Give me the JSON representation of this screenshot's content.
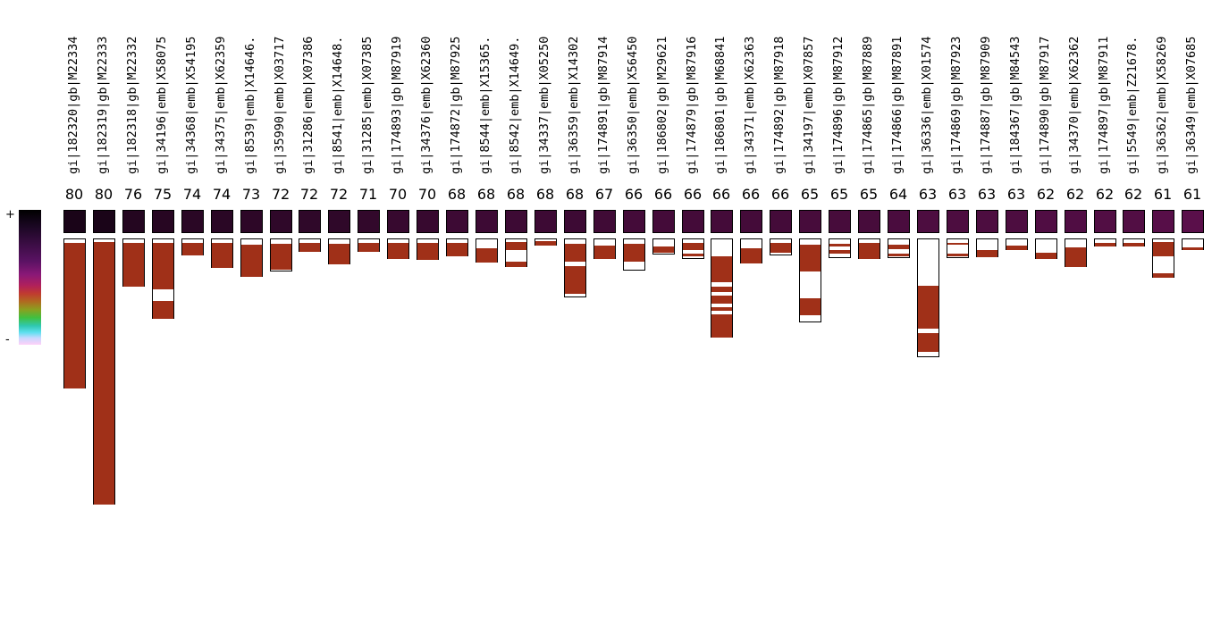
{
  "legend": {
    "plus": "+",
    "minus": "-"
  },
  "colors": {
    "bar_fill": "#a03018",
    "bar_empty": "#ffffff",
    "heat_high": "#1a0418",
    "heat_low": "#5a0f4a"
  },
  "columns": [
    {
      "label": "gi|182320|gb|M22334",
      "score": "80",
      "heat": 0.0,
      "total": 168,
      "cap": 5,
      "fill": [
        [
          5,
          168
        ]
      ]
    },
    {
      "label": "gi|182319|gb|M22333",
      "score": "80",
      "heat": 0.0,
      "total": 298,
      "cap": 4,
      "fill": [
        [
          4,
          298
        ]
      ]
    },
    {
      "label": "gi|182318|gb|M22332",
      "score": "76",
      "heat": 0.15,
      "total": 54,
      "cap": 5,
      "fill": [
        [
          5,
          54
        ]
      ]
    },
    {
      "label": "gi|34196|emb|X58075",
      "score": "75",
      "heat": 0.2,
      "total": 90,
      "cap": 5,
      "fill": [
        [
          5,
          57
        ],
        [
          70,
          90
        ]
      ]
    },
    {
      "label": "gi|34368|emb|X54195",
      "score": "74",
      "heat": 0.25,
      "total": 19,
      "cap": 5,
      "fill": [
        [
          5,
          19
        ]
      ]
    },
    {
      "label": "gi|34375|emb|X62359",
      "score": "74",
      "heat": 0.25,
      "total": 33,
      "cap": 5,
      "fill": [
        [
          5,
          33
        ]
      ]
    },
    {
      "label": "gi|8539|emb|X14646.",
      "score": "73",
      "heat": 0.3,
      "total": 43,
      "cap": 7,
      "fill": [
        [
          7,
          43
        ]
      ]
    },
    {
      "label": "gi|35990|emb|X03717",
      "score": "72",
      "heat": 0.33,
      "total": 37,
      "cap": 6,
      "fill": [
        [
          6,
          35
        ]
      ]
    },
    {
      "label": "gi|31286|emb|X07386",
      "score": "72",
      "heat": 0.33,
      "total": 15,
      "cap": 5,
      "fill": [
        [
          5,
          15
        ]
      ]
    },
    {
      "label": "gi|8541|emb|X14648.",
      "score": "72",
      "heat": 0.33,
      "total": 29,
      "cap": 6,
      "fill": [
        [
          6,
          29
        ]
      ]
    },
    {
      "label": "gi|31285|emb|X07385",
      "score": "71",
      "heat": 0.38,
      "total": 15,
      "cap": 5,
      "fill": [
        [
          5,
          15
        ]
      ]
    },
    {
      "label": "gi|174893|gb|M87919",
      "score": "70",
      "heat": 0.45,
      "total": 23,
      "cap": 5,
      "fill": [
        [
          5,
          23
        ]
      ]
    },
    {
      "label": "gi|34376|emb|X62360",
      "score": "70",
      "heat": 0.45,
      "total": 24,
      "cap": 5,
      "fill": [
        [
          5,
          24
        ]
      ]
    },
    {
      "label": "gi|174872|gb|M87925",
      "score": "68",
      "heat": 0.55,
      "total": 20,
      "cap": 5,
      "fill": [
        [
          5,
          20
        ]
      ]
    },
    {
      "label": "gi|8544|emb|X15365.",
      "score": "68",
      "heat": 0.55,
      "total": 27,
      "cap": 11,
      "fill": [
        [
          11,
          27
        ]
      ]
    },
    {
      "label": "gi|8542|emb|X14649.",
      "score": "68",
      "heat": 0.55,
      "total": 32,
      "cap": 4,
      "fill": [
        [
          4,
          13
        ],
        [
          26,
          32
        ]
      ]
    },
    {
      "label": "gi|34337|emb|X05250",
      "score": "68",
      "heat": 0.55,
      "total": 8,
      "cap": 3,
      "fill": [
        [
          3,
          8
        ]
      ]
    },
    {
      "label": "gi|36359|emb|X14302",
      "score": "68",
      "heat": 0.55,
      "total": 66,
      "cap": 6,
      "fill": [
        [
          6,
          26
        ],
        [
          31,
          62
        ]
      ]
    },
    {
      "label": "gi|174891|gb|M87914",
      "score": "67",
      "heat": 0.6,
      "total": 23,
      "cap": 8,
      "fill": [
        [
          8,
          23
        ]
      ]
    },
    {
      "label": "gi|36350|emb|X56450",
      "score": "66",
      "heat": 0.65,
      "total": 36,
      "cap": 6,
      "fill": [
        [
          6,
          26
        ]
      ]
    },
    {
      "label": "gi|186802|gb|M29621",
      "score": "66",
      "heat": 0.65,
      "total": 18,
      "cap": 9,
      "fill": [
        [
          9,
          16
        ]
      ]
    },
    {
      "label": "gi|174879|gb|M87916",
      "score": "66",
      "heat": 0.65,
      "total": 23,
      "cap": 5,
      "fill": [
        [
          5,
          13
        ],
        [
          17,
          20
        ]
      ]
    },
    {
      "label": "gi|186801|gb|M68841",
      "score": "66",
      "heat": 0.65,
      "total": 111,
      "cap": 20,
      "fill": [
        [
          20,
          49
        ],
        [
          54,
          60
        ],
        [
          64,
          73
        ],
        [
          77,
          81
        ],
        [
          85,
          111
        ]
      ]
    },
    {
      "label": "gi|34371|emb|X62363",
      "score": "66",
      "heat": 0.65,
      "total": 28,
      "cap": 11,
      "fill": [
        [
          11,
          28
        ]
      ]
    },
    {
      "label": "gi|174892|gb|M87918",
      "score": "66",
      "heat": 0.65,
      "total": 19,
      "cap": 5,
      "fill": [
        [
          5,
          16
        ]
      ]
    },
    {
      "label": "gi|34197|emb|X07857",
      "score": "65",
      "heat": 0.7,
      "total": 94,
      "cap": 7,
      "fill": [
        [
          7,
          37
        ],
        [
          67,
          86
        ]
      ]
    },
    {
      "label": "gi|174896|gb|M87912",
      "score": "65",
      "heat": 0.7,
      "total": 22,
      "cap": 6,
      "fill": [
        [
          6,
          9
        ],
        [
          13,
          17
        ]
      ]
    },
    {
      "label": "gi|174865|gb|M87889",
      "score": "65",
      "heat": 0.7,
      "total": 23,
      "cap": 5,
      "fill": [
        [
          5,
          23
        ]
      ]
    },
    {
      "label": "gi|174866|gb|M87891",
      "score": "64",
      "heat": 0.75,
      "total": 22,
      "cap": 7,
      "fill": [
        [
          7,
          12
        ],
        [
          17,
          20
        ]
      ]
    },
    {
      "label": "gi|36336|emb|X01574",
      "score": "63",
      "heat": 0.8,
      "total": 133,
      "cap": 53,
      "fill": [
        [
          53,
          101
        ],
        [
          106,
          127
        ]
      ]
    },
    {
      "label": "gi|174869|gb|M87923",
      "score": "63",
      "heat": 0.8,
      "total": 22,
      "cap": 5,
      "fill": [
        [
          5,
          7
        ],
        [
          17,
          20
        ]
      ]
    },
    {
      "label": "gi|174887|gb|M87909",
      "score": "63",
      "heat": 0.8,
      "total": 21,
      "cap": 13,
      "fill": [
        [
          13,
          21
        ]
      ]
    },
    {
      "label": "gi|184367|gb|M84543",
      "score": "63",
      "heat": 0.8,
      "total": 13,
      "cap": 8,
      "fill": [
        [
          8,
          13
        ]
      ]
    },
    {
      "label": "gi|174890|gb|M87917",
      "score": "62",
      "heat": 0.85,
      "total": 23,
      "cap": 16,
      "fill": [
        [
          16,
          23
        ]
      ]
    },
    {
      "label": "gi|34370|emb|X62362",
      "score": "62",
      "heat": 0.85,
      "total": 32,
      "cap": 10,
      "fill": [
        [
          10,
          32
        ]
      ]
    },
    {
      "label": "gi|174897|gb|M87911",
      "score": "62",
      "heat": 0.88,
      "total": 9,
      "cap": 5,
      "fill": [
        [
          5,
          9
        ]
      ]
    },
    {
      "label": "gi|5549|emb|Z21678.",
      "score": "62",
      "heat": 0.88,
      "total": 9,
      "cap": 5,
      "fill": [
        [
          5,
          9
        ]
      ]
    },
    {
      "label": "gi|36362|emb|X58269",
      "score": "61",
      "heat": 0.95,
      "total": 44,
      "cap": 4,
      "fill": [
        [
          4,
          20
        ],
        [
          39,
          44
        ]
      ]
    },
    {
      "label": "gi|36349|emb|X07685",
      "score": "61",
      "heat": 1.0,
      "total": 13,
      "cap": 10,
      "fill": [
        [
          10,
          13
        ]
      ]
    }
  ]
}
